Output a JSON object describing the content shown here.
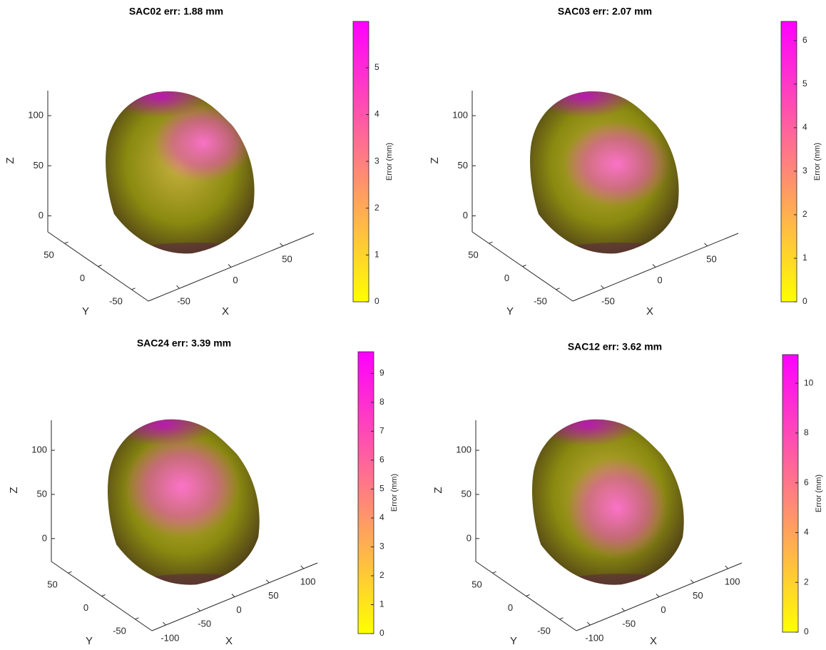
{
  "chart_data": [
    {
      "type": "surface3d",
      "title": "SAC02 err: 1.88 mm",
      "xlabel": "X",
      "ylabel": "Y",
      "zlabel": "Z",
      "xlim": [
        -80,
        80
      ],
      "xticks": [
        -50,
        0,
        50
      ],
      "ylim": [
        -75,
        75
      ],
      "yticks": [
        -50,
        0,
        50
      ],
      "zlim": [
        -16,
        125
      ],
      "zticks": [
        0,
        50,
        100
      ],
      "colormap": [
        "#ffff00",
        "#ff00ff"
      ],
      "colorbar_label": "Error (mm)",
      "clim": [
        0,
        5.99
      ],
      "cticks": [
        0,
        1,
        2,
        3,
        4,
        5
      ]
    },
    {
      "type": "surface3d",
      "title": "SAC03 err: 2.07 mm",
      "xlabel": "X",
      "ylabel": "Y",
      "zlabel": "Z",
      "xlim": [
        -80,
        80
      ],
      "xticks": [
        -50,
        0,
        50
      ],
      "ylim": [
        -75,
        75
      ],
      "yticks": [
        -50,
        0,
        50
      ],
      "zlim": [
        -16,
        125
      ],
      "zticks": [
        0,
        50,
        100
      ],
      "colormap": [
        "#ffff00",
        "#ff00ff"
      ],
      "colorbar_label": "Error (mm)",
      "clim": [
        0,
        6.44
      ],
      "cticks": [
        0,
        1,
        2,
        3,
        4,
        5,
        6
      ]
    },
    {
      "type": "surface3d",
      "title": "SAC24 err: 3.39 mm",
      "xlabel": "X",
      "ylabel": "Y",
      "zlabel": "Z",
      "xlim": [
        -120,
        120
      ],
      "xticks": [
        -100,
        -50,
        0,
        50,
        100
      ],
      "ylim": [
        -75,
        75
      ],
      "yticks": [
        -50,
        0,
        50
      ],
      "zlim": [
        -26,
        134
      ],
      "zticks": [
        0,
        50,
        100
      ],
      "colormap": [
        "#ffff00",
        "#ff00ff"
      ],
      "colorbar_label": "Error (mm)",
      "clim": [
        0,
        9.75
      ],
      "cticks": [
        0,
        1,
        2,
        3,
        4,
        5,
        6,
        7,
        8,
        9
      ]
    },
    {
      "type": "surface3d",
      "title": "SAC12 err: 3.62 mm",
      "xlabel": "X",
      "ylabel": "Y",
      "zlabel": "Z",
      "xlim": [
        -120,
        120
      ],
      "xticks": [
        -100,
        -50,
        0,
        50,
        100
      ],
      "ylim": [
        -75,
        75
      ],
      "yticks": [
        -50,
        0,
        50
      ],
      "zlim": [
        -26,
        134
      ],
      "zticks": [
        0,
        50,
        100
      ],
      "colormap": [
        "#ffff00",
        "#ff00ff"
      ],
      "colorbar_label": "Error (mm)",
      "clim": [
        0,
        11.15
      ],
      "cticks": [
        0,
        2,
        4,
        6,
        8,
        10
      ]
    }
  ]
}
